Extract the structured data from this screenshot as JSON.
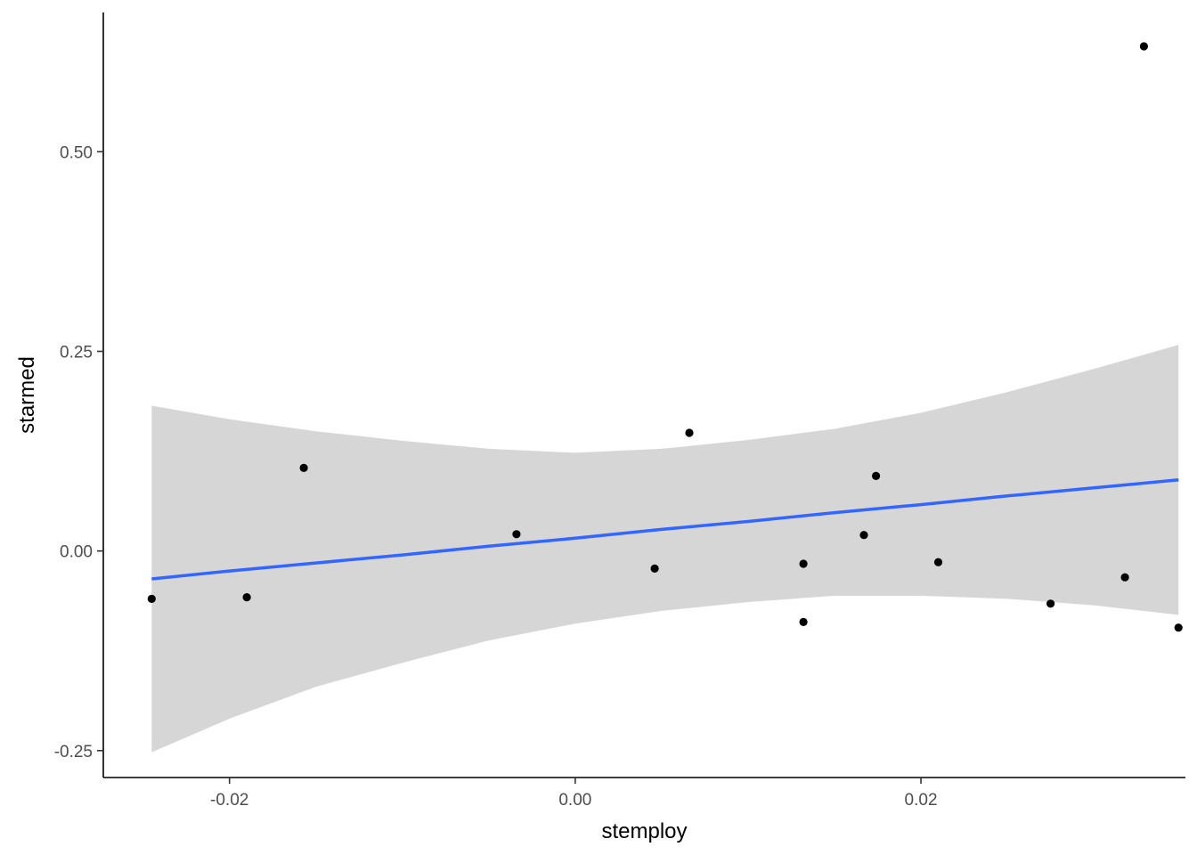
{
  "chart_data": {
    "type": "scatter",
    "xlabel": "stemploy",
    "ylabel": "starmed",
    "xlim": [
      -0.0273,
      0.0353
    ],
    "ylim": [
      -0.2837,
      0.6744
    ],
    "x_ticks": [
      {
        "value": -0.02,
        "label": "-0.02"
      },
      {
        "value": 0.0,
        "label": "0.00"
      },
      {
        "value": 0.02,
        "label": "0.02"
      }
    ],
    "y_ticks": [
      {
        "value": -0.25,
        "label": "-0.25"
      },
      {
        "value": 0.0,
        "label": "0.00"
      },
      {
        "value": 0.25,
        "label": "0.25"
      },
      {
        "value": 0.5,
        "label": "0.50"
      }
    ],
    "grid": false,
    "point_color": "#000000",
    "points": [
      {
        "x": -0.0245,
        "y": -0.06
      },
      {
        "x": -0.019,
        "y": -0.058
      },
      {
        "x": -0.0157,
        "y": 0.104
      },
      {
        "x": -0.0034,
        "y": 0.021
      },
      {
        "x": 0.0046,
        "y": -0.022
      },
      {
        "x": 0.0066,
        "y": 0.148
      },
      {
        "x": 0.0132,
        "y": -0.016
      },
      {
        "x": 0.0132,
        "y": -0.089
      },
      {
        "x": 0.0167,
        "y": 0.02
      },
      {
        "x": 0.0174,
        "y": 0.094
      },
      {
        "x": 0.021,
        "y": -0.014
      },
      {
        "x": 0.0275,
        "y": -0.066
      },
      {
        "x": 0.0318,
        "y": -0.033
      },
      {
        "x": 0.0329,
        "y": 0.632
      },
      {
        "x": 0.0349,
        "y": -0.096
      }
    ],
    "fit": {
      "method": "lm",
      "line_color": "#3366FF",
      "band_color": "#d6d6d6",
      "x": [
        -0.0245,
        -0.02,
        -0.015,
        -0.01,
        -0.005,
        0.0,
        0.005,
        0.01,
        0.015,
        0.02,
        0.025,
        0.03,
        0.0349
      ],
      "y": [
        -0.035,
        -0.025,
        -0.015,
        -0.005,
        0.006,
        0.016,
        0.027,
        0.037,
        0.048,
        0.058,
        0.069,
        0.079,
        0.089
      ],
      "lower": [
        -0.252,
        -0.21,
        -0.17,
        -0.14,
        -0.112,
        -0.091,
        -0.075,
        -0.064,
        -0.056,
        -0.056,
        -0.06,
        -0.068,
        -0.08
      ],
      "upper": [
        0.182,
        0.165,
        0.15,
        0.138,
        0.128,
        0.123,
        0.128,
        0.139,
        0.153,
        0.173,
        0.199,
        0.228,
        0.258
      ]
    }
  }
}
